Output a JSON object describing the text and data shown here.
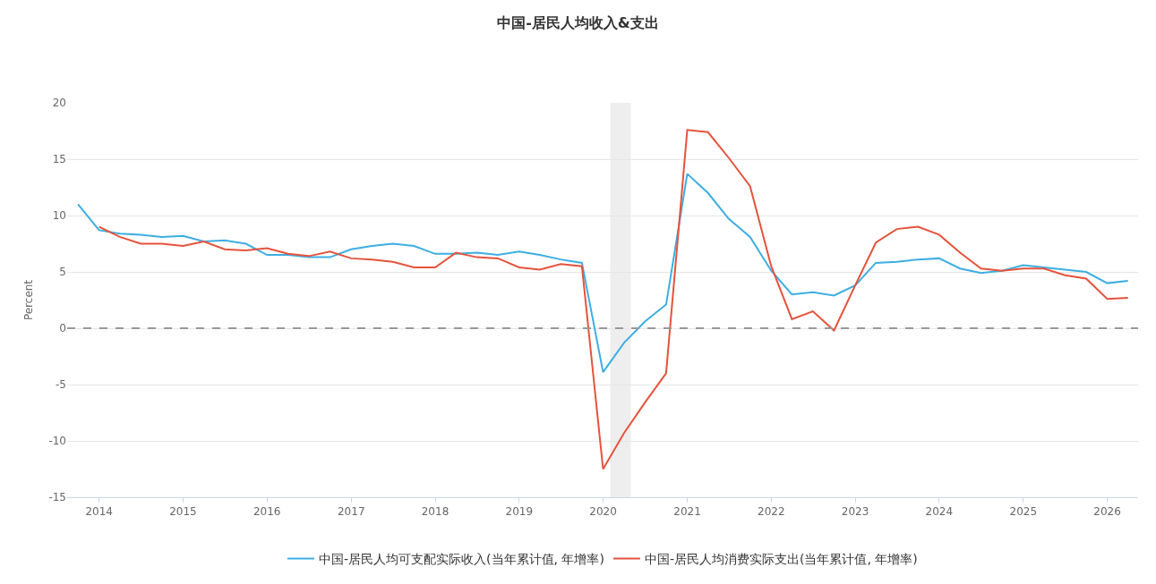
{
  "chart_data": {
    "type": "line",
    "title": "中国-居民人均收入&支出",
    "ylabel": "Percent",
    "x": [
      "2013-10-01",
      "2014-01-01",
      "2014-04-01",
      "2014-07-01",
      "2014-10-01",
      "2015-01-01",
      "2015-04-01",
      "2015-07-01",
      "2015-10-01",
      "2016-01-01",
      "2016-04-01",
      "2016-07-01",
      "2016-10-01",
      "2017-01-01",
      "2017-04-01",
      "2017-07-01",
      "2017-10-01",
      "2018-01-01",
      "2018-04-01",
      "2018-07-01",
      "2018-10-01",
      "2019-01-01",
      "2019-04-01",
      "2019-07-01",
      "2019-10-01",
      "2020-01-01",
      "2020-04-01",
      "2020-07-01",
      "2020-10-01",
      "2021-01-01",
      "2021-04-01",
      "2021-07-01",
      "2021-10-01",
      "2022-01-01",
      "2022-04-01",
      "2022-07-01",
      "2022-10-01",
      "2023-01-01",
      "2023-04-01",
      "2023-07-01",
      "2023-10-01",
      "2024-01-01",
      "2024-04-01",
      "2024-07-01",
      "2024-10-01",
      "2025-01-01",
      "2025-04-01",
      "2025-07-01",
      "2025-10-01",
      "2026-01-01",
      "2026-04-01"
    ],
    "series": [
      {
        "name": "中国-居民人均可支配实际收入(当年累计值, 年增率)",
        "color": "#3daee3",
        "values": [
          11.0,
          8.7,
          8.4,
          8.3,
          8.1,
          8.2,
          7.7,
          7.8,
          7.5,
          6.5,
          6.5,
          6.3,
          6.3,
          7.0,
          7.3,
          7.5,
          7.3,
          6.6,
          6.6,
          6.7,
          6.5,
          6.8,
          6.5,
          6.1,
          5.8,
          -3.9,
          -1.3,
          0.6,
          2.1,
          13.7,
          12.0,
          9.7,
          8.1,
          5.1,
          3.0,
          3.2,
          2.9,
          3.8,
          5.8,
          5.9,
          6.1,
          6.2,
          5.3,
          4.9,
          5.1,
          5.6,
          5.4,
          5.2,
          5.0,
          4.0,
          4.2
        ]
      },
      {
        "name": "中国-居民人均消费实际支出(当年累计值, 年增率)",
        "color": "#e5533c",
        "values": [
          null,
          9.0,
          8.1,
          7.5,
          7.5,
          7.3,
          7.7,
          7.0,
          6.9,
          7.1,
          6.6,
          6.4,
          6.8,
          6.2,
          6.1,
          5.9,
          5.4,
          5.4,
          6.7,
          6.3,
          6.2,
          5.4,
          5.2,
          5.7,
          5.5,
          -12.5,
          -9.3,
          -6.6,
          -4.0,
          17.6,
          17.4,
          15.1,
          12.6,
          5.5,
          0.8,
          1.5,
          -0.2,
          3.8,
          7.6,
          8.8,
          9.0,
          8.3,
          6.7,
          5.3,
          5.1,
          5.3,
          5.3,
          4.7,
          4.4,
          2.6,
          2.7
        ]
      }
    ],
    "xlim": [
      "2013-08-15",
      "2026-05-15"
    ],
    "xticks": [
      {
        "value": "2014-01-01",
        "label": "2014"
      },
      {
        "value": "2015-01-01",
        "label": "2015"
      },
      {
        "value": "2016-01-01",
        "label": "2016"
      },
      {
        "value": "2017-01-01",
        "label": "2017"
      },
      {
        "value": "2018-01-01",
        "label": "2018"
      },
      {
        "value": "2019-01-01",
        "label": "2019"
      },
      {
        "value": "2020-01-01",
        "label": "2020"
      },
      {
        "value": "2021-01-01",
        "label": "2021"
      },
      {
        "value": "2022-01-01",
        "label": "2022"
      },
      {
        "value": "2023-01-01",
        "label": "2023"
      },
      {
        "value": "2024-01-01",
        "label": "2024"
      },
      {
        "value": "2025-01-01",
        "label": "2025"
      },
      {
        "value": "2026-01-01",
        "label": "2026"
      }
    ],
    "ylim": [
      -15,
      20
    ],
    "yticks": [
      -15,
      -10,
      -5,
      0,
      5,
      10,
      15,
      20
    ],
    "ref_lines": [
      {
        "axis": "y",
        "value": 0,
        "color": "#999999",
        "line_style": "dashed"
      }
    ],
    "bands": [
      {
        "axis": "x",
        "from": "2020-02-01",
        "to": "2020-05-01",
        "color": "#eeeeee"
      }
    ],
    "grid": "y",
    "legend": "bottom",
    "marker": "none",
    "line_style": "solid"
  }
}
